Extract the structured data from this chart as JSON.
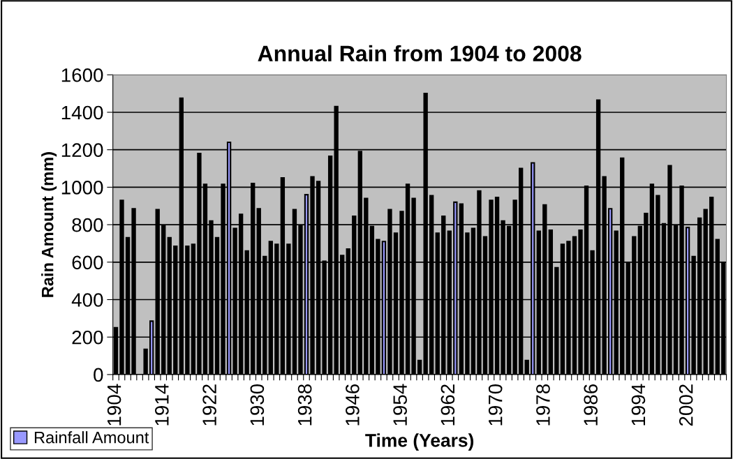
{
  "chart_data": {
    "type": "bar",
    "title": "Annual Rain from 1904 to 2008",
    "xlabel": "Time (Years)",
    "ylabel": "Rain Amount (mm)",
    "categories": [
      "1904",
      null,
      null,
      null,
      null,
      null,
      null,
      null,
      "1914",
      null,
      null,
      null,
      null,
      null,
      null,
      null,
      "1922",
      null,
      null,
      null,
      null,
      null,
      null,
      null,
      "1930",
      null,
      null,
      null,
      null,
      null,
      null,
      null,
      "1938",
      null,
      null,
      null,
      null,
      null,
      null,
      null,
      "1946",
      null,
      null,
      null,
      null,
      null,
      null,
      null,
      "1954",
      null,
      null,
      null,
      null,
      null,
      null,
      null,
      "1962",
      null,
      null,
      null,
      null,
      null,
      null,
      null,
      "1970",
      null,
      null,
      null,
      null,
      null,
      null,
      null,
      "1978",
      null,
      null,
      null,
      null,
      null,
      null,
      null,
      "1986",
      null,
      null,
      null,
      null,
      null,
      null,
      null,
      "1994",
      null,
      null,
      null,
      null,
      null,
      null,
      null,
      "2002",
      null,
      null,
      null,
      null,
      null,
      null
    ],
    "series": [
      {
        "name": "Rainfall Amount",
        "color": "#9999ff",
        "values": [
          250,
          930,
          730,
          885,
          null,
          135,
          285,
          880,
          795,
          730,
          685,
          1475,
          685,
          695,
          1180,
          1015,
          820,
          730,
          1015,
          1240,
          780,
          855,
          660,
          1020,
          885,
          630,
          710,
          695,
          1050,
          695,
          880,
          795,
          960,
          1055,
          1030,
          605,
          1165,
          1430,
          635,
          670,
          845,
          1190,
          940,
          790,
          720,
          710,
          880,
          755,
          870,
          1015,
          940,
          75,
          1500,
          955,
          755,
          845,
          765,
          920,
          910,
          755,
          780,
          980,
          735,
          930,
          945,
          820,
          790,
          930,
          1100,
          75,
          1130,
          765,
          905,
          770,
          570,
          695,
          710,
          735,
          770,
          1005,
          660,
          1465,
          1055,
          885,
          765,
          1155,
          595,
          735,
          790,
          860,
          1015,
          955,
          805,
          1115,
          795,
          1005,
          785,
          630,
          835,
          880,
          945,
          720,
          595
        ],
        "colors": [
          "#000000",
          "#000000",
          "#000000",
          "#000000",
          "#000000",
          "#000000",
          "#9999ff",
          "#000000",
          "#000000",
          "#000000",
          "#000000",
          "#000000",
          "#000000",
          "#000000",
          "#000000",
          "#000000",
          "#000000",
          "#000000",
          "#000000",
          "#9999ff",
          "#000000",
          "#000000",
          "#000000",
          "#000000",
          "#000000",
          "#000000",
          "#000000",
          "#000000",
          "#000000",
          "#000000",
          "#000000",
          "#000000",
          "#9999ff",
          "#000000",
          "#000000",
          "#000000",
          "#000000",
          "#000000",
          "#000000",
          "#000000",
          "#000000",
          "#000000",
          "#000000",
          "#000000",
          "#000000",
          "#9999ff",
          "#000000",
          "#000000",
          "#000000",
          "#000000",
          "#000000",
          "#000000",
          "#000000",
          "#000000",
          "#000000",
          "#000000",
          "#000000",
          "#9999ff",
          "#000000",
          "#000000",
          "#000000",
          "#000000",
          "#000000",
          "#000000",
          "#000000",
          "#000000",
          "#000000",
          "#000000",
          "#000000",
          "#000000",
          "#9999ff",
          "#000000",
          "#000000",
          "#000000",
          "#000000",
          "#000000",
          "#000000",
          "#000000",
          "#000000",
          "#000000",
          "#000000",
          "#000000",
          "#000000",
          "#9999ff",
          "#000000",
          "#000000",
          "#000000",
          "#000000",
          "#000000",
          "#000000",
          "#000000",
          "#000000",
          "#000000",
          "#000000",
          "#000000",
          "#000000",
          "#9999ff",
          "#000000",
          "#000000",
          "#000000",
          "#000000",
          "#000000",
          "#000000"
        ]
      }
    ],
    "ylim": [
      0,
      1600
    ],
    "yticks": [
      0,
      200,
      400,
      600,
      800,
      1000,
      1200,
      1400,
      1600
    ],
    "grid": "y",
    "legend": "bottom left"
  }
}
